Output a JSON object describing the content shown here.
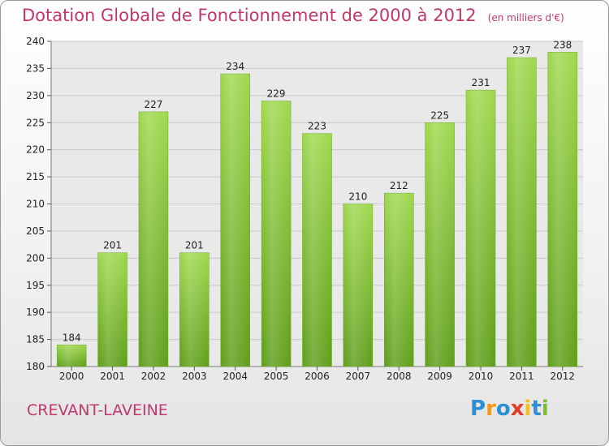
{
  "title": "Dotation Globale de Fonctionnement de 2000 à 2012",
  "subtitle": "(en milliers d'€)",
  "commune": "CREVANT-LAVEINE",
  "logo": {
    "letters": [
      "P",
      "r",
      "o",
      "x",
      "i",
      "t",
      "i"
    ],
    "colors": [
      "#2f8fd6",
      "#f39a1d",
      "#2f8fd6",
      "#e23c2b",
      "#f3c21d",
      "#2f8fd6",
      "#7cbf2a"
    ]
  },
  "chart_data": {
    "type": "bar",
    "title": "Dotation Globale de Fonctionnement de 2000 à 2012",
    "subtitle": "(en milliers d'€)",
    "categories": [
      "2000",
      "2001",
      "2002",
      "2003",
      "2004",
      "2005",
      "2006",
      "2007",
      "2008",
      "2009",
      "2010",
      "2011",
      "2012"
    ],
    "values": [
      184,
      201,
      227,
      201,
      234,
      229,
      223,
      210,
      212,
      225,
      231,
      237,
      238
    ],
    "ylim": [
      180,
      240
    ],
    "yticks": [
      180,
      185,
      190,
      195,
      200,
      205,
      210,
      215,
      220,
      225,
      230,
      235,
      240
    ],
    "grid": true,
    "bar_color": "#7cc23a"
  }
}
